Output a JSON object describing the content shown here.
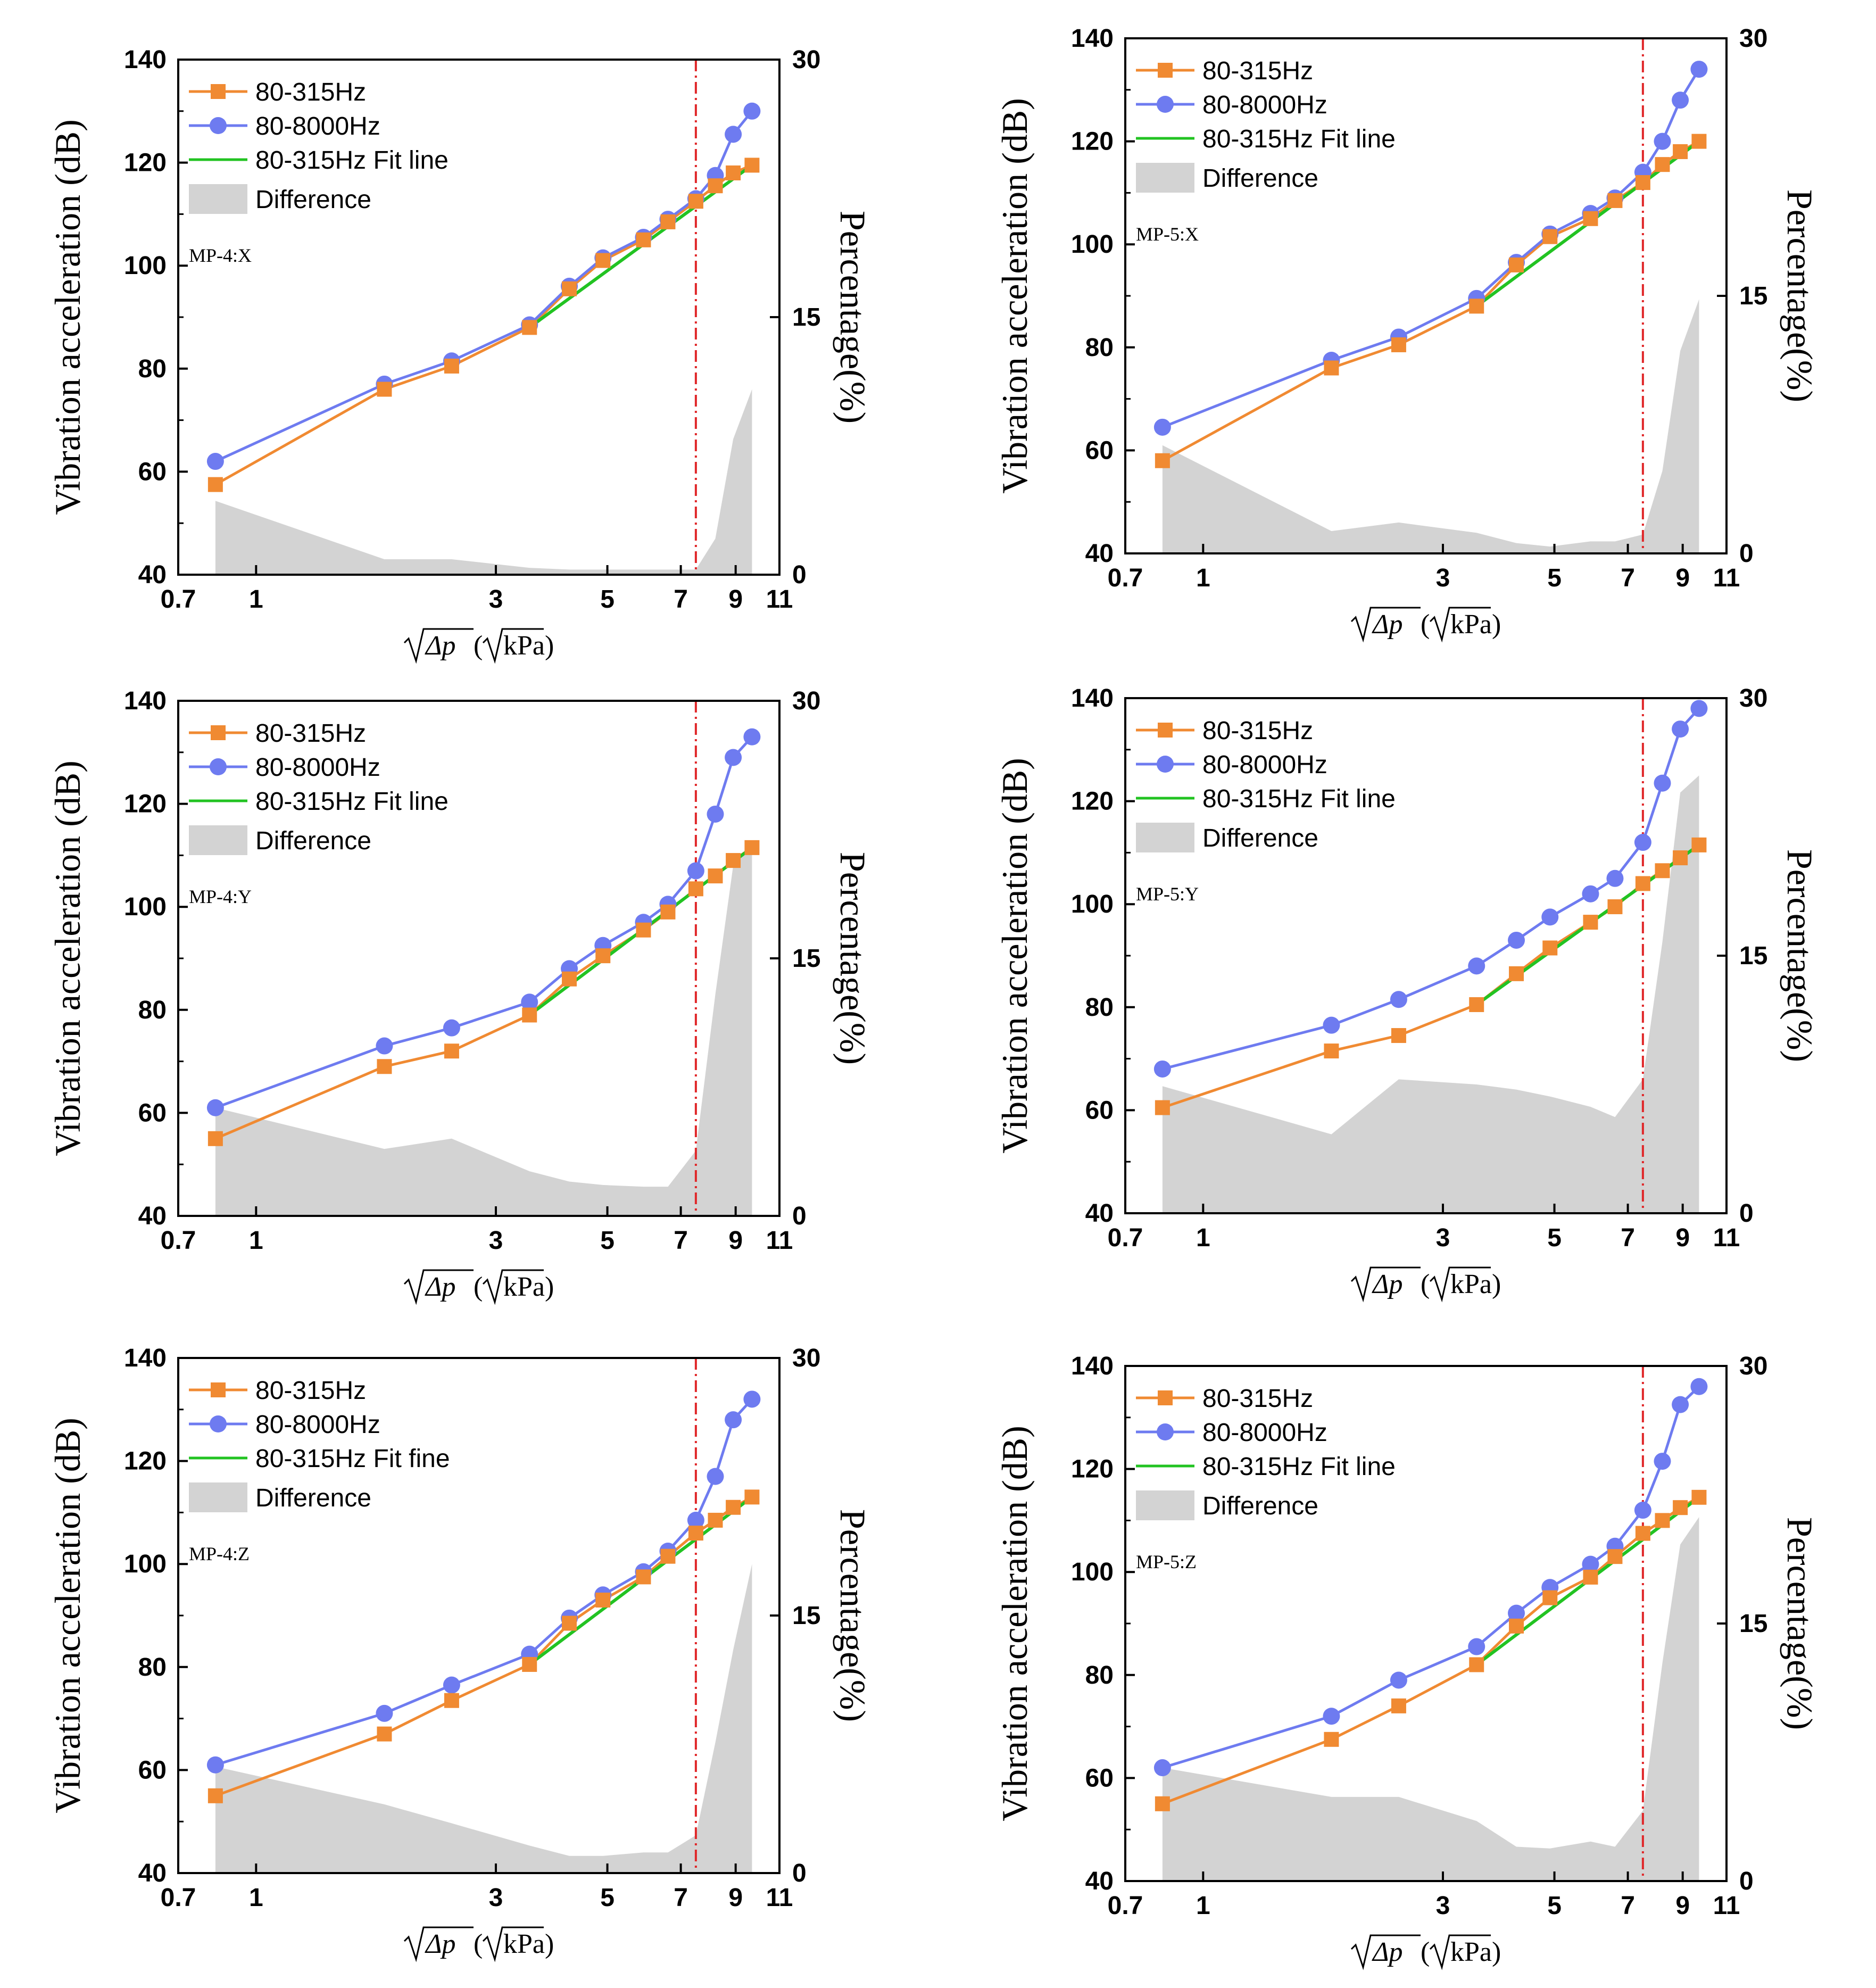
{
  "x_axis": {
    "label_sym": "Δp",
    "label_unit": "kPa",
    "ticks": [
      0.7,
      1,
      3,
      5,
      7,
      9,
      11
    ],
    "tick_labels": [
      "0.7",
      "1",
      "3",
      "5",
      "7",
      "9",
      "11"
    ]
  },
  "y_axis": {
    "title": "Vibration acceleration (dB)",
    "ticks": [
      40,
      60,
      80,
      100,
      120,
      140
    ],
    "tick_labels": [
      "40",
      "60",
      "80",
      "100",
      "120",
      "140"
    ],
    "range": [
      40,
      140
    ]
  },
  "y2_axis": {
    "title": "Percentage(%)",
    "ticks": [
      0,
      15,
      30
    ],
    "tick_labels": [
      "0",
      "15",
      "30"
    ],
    "range": [
      0,
      30
    ]
  },
  "colors": {
    "low": "#F08A32",
    "high": "#6E7BF0",
    "fit": "#22C322",
    "diff": "#D3D3D3",
    "ref": "#E0282A"
  },
  "chart_data": [
    {
      "type": "line",
      "tag": "MP-4:X",
      "legend": [
        "80-315Hz",
        "80-8000Hz",
        "80-315Hz Fit line",
        "Difference"
      ],
      "x": [
        0.83,
        1.8,
        2.45,
        3.5,
        4.2,
        4.9,
        5.9,
        6.6,
        7.5,
        8.2,
        8.9,
        9.7
      ],
      "series": [
        {
          "name": "80-315Hz",
          "values": [
            57.5,
            76,
            80.5,
            88,
            95.5,
            101,
            105,
            108.5,
            112.5,
            115.5,
            118,
            119.5
          ]
        },
        {
          "name": "80-8000Hz",
          "values": [
            62,
            77,
            81.5,
            88.5,
            96,
            101.5,
            105.5,
            109,
            113,
            117.5,
            125.5,
            130
          ]
        },
        {
          "name": "80-315Hz Fit line",
          "x": [
            3.5,
            9.7
          ],
          "values": [
            88,
            119.5
          ]
        }
      ],
      "difference": {
        "x": [
          0.83,
          1.8,
          2.45,
          3.5,
          4.2,
          4.9,
          5.9,
          6.6,
          7.5,
          8.2,
          8.9,
          9.7
        ],
        "values": [
          4.3,
          0.9,
          0.9,
          0.4,
          0.3,
          0.3,
          0.3,
          0.3,
          0.3,
          2.1,
          7.9,
          10.8
        ]
      },
      "ref_x": 7.5,
      "ylim": [
        40,
        140
      ],
      "y2lim": [
        0,
        30
      ]
    },
    {
      "type": "line",
      "tag": "MP-5:X",
      "legend": [
        "80-315Hz",
        "80-8000Hz",
        "80-315Hz Fit line",
        "Difference"
      ],
      "x": [
        0.83,
        1.8,
        2.45,
        3.5,
        4.2,
        4.9,
        5.9,
        6.6,
        7.5,
        8.2,
        8.9,
        9.7
      ],
      "series": [
        {
          "name": "80-315Hz",
          "values": [
            58,
            76,
            80.5,
            88,
            96,
            101.5,
            105,
            108.5,
            112,
            115.5,
            118,
            120
          ]
        },
        {
          "name": "80-8000Hz",
          "values": [
            64.5,
            77.5,
            82,
            89.5,
            96.5,
            102,
            106,
            109,
            114,
            120,
            128,
            134
          ]
        },
        {
          "name": "80-315Hz Fit line",
          "x": [
            3.5,
            9.7
          ],
          "values": [
            88,
            120
          ]
        }
      ],
      "difference": {
        "x": [
          0.83,
          1.8,
          2.45,
          3.5,
          4.2,
          4.9,
          5.9,
          6.6,
          7.5,
          8.2,
          8.9,
          9.7
        ],
        "values": [
          6.3,
          1.3,
          1.8,
          1.2,
          0.6,
          0.4,
          0.7,
          0.7,
          1.1,
          4.8,
          11.8,
          14.8
        ]
      },
      "ref_x": 7.5,
      "ylim": [
        40,
        140
      ],
      "y2lim": [
        0,
        30
      ]
    },
    {
      "type": "line",
      "tag": "MP-4:Y",
      "legend": [
        "80-315Hz",
        "80-8000Hz",
        "80-315Hz Fit line",
        "Difference"
      ],
      "x": [
        0.83,
        1.8,
        2.45,
        3.5,
        4.2,
        4.9,
        5.9,
        6.6,
        7.5,
        8.2,
        8.9,
        9.7
      ],
      "series": [
        {
          "name": "80-315Hz",
          "values": [
            55,
            69,
            72,
            79,
            86,
            90.5,
            95.5,
            99,
            103.5,
            106,
            109,
            111.5
          ]
        },
        {
          "name": "80-8000Hz",
          "values": [
            61,
            73,
            76.5,
            81.5,
            88,
            92.5,
            97,
            100.5,
            107,
            118,
            129,
            133
          ]
        },
        {
          "name": "80-315Hz Fit line",
          "x": [
            3.5,
            9.7
          ],
          "values": [
            79,
            111.5
          ]
        }
      ],
      "difference": {
        "x": [
          0.83,
          1.8,
          2.45,
          3.5,
          4.2,
          4.9,
          5.9,
          6.6,
          7.5,
          8.2,
          8.9,
          9.7
        ],
        "values": [
          6.3,
          3.9,
          4.5,
          2.6,
          2.0,
          1.8,
          1.7,
          1.7,
          3.8,
          12.9,
          20.4,
          21.5
        ]
      },
      "ref_x": 7.5,
      "ylim": [
        40,
        140
      ],
      "y2lim": [
        0,
        30
      ]
    },
    {
      "type": "line",
      "tag": "MP-5:Y",
      "legend": [
        "80-315Hz",
        "80-8000Hz",
        "80-315Hz Fit line",
        "Difference"
      ],
      "x": [
        0.83,
        1.8,
        2.45,
        3.5,
        4.2,
        4.9,
        5.9,
        6.6,
        7.5,
        8.2,
        8.9,
        9.7
      ],
      "series": [
        {
          "name": "80-315Hz",
          "values": [
            60.5,
            71.5,
            74.5,
            80.5,
            86.5,
            91.5,
            96.5,
            99.5,
            104,
            106.5,
            109,
            111.5
          ]
        },
        {
          "name": "80-8000Hz",
          "values": [
            68,
            76.5,
            81.5,
            88,
            93,
            97.5,
            102,
            105,
            112,
            123.5,
            134,
            138
          ]
        },
        {
          "name": "80-315Hz Fit line",
          "x": [
            3.5,
            9.7
          ],
          "values": [
            80.5,
            111.5
          ]
        }
      ],
      "difference": {
        "x": [
          0.83,
          1.8,
          2.45,
          3.5,
          4.2,
          4.9,
          5.9,
          6.6,
          7.5,
          8.2,
          8.9,
          9.7
        ],
        "values": [
          7.4,
          4.6,
          7.8,
          7.5,
          7.2,
          6.8,
          6.2,
          5.6,
          7.8,
          15.8,
          24.5,
          25.5
        ]
      },
      "ref_x": 7.5,
      "ylim": [
        40,
        140
      ],
      "y2lim": [
        0,
        30
      ]
    },
    {
      "type": "line",
      "tag": "MP-4:Z",
      "legend": [
        "80-315Hz",
        "80-8000Hz",
        "80-315Hz Fit fine",
        "Difference"
      ],
      "x": [
        0.83,
        1.8,
        2.45,
        3.5,
        4.2,
        4.9,
        5.9,
        6.6,
        7.5,
        8.2,
        8.9,
        9.7
      ],
      "series": [
        {
          "name": "80-315Hz",
          "values": [
            55,
            67,
            73.5,
            80.5,
            88.5,
            93,
            97.5,
            101.5,
            106,
            108.5,
            111,
            113
          ]
        },
        {
          "name": "80-8000Hz",
          "values": [
            61,
            71,
            76.5,
            82.5,
            89.5,
            94,
            98.5,
            102.5,
            108.5,
            117,
            128,
            132
          ]
        },
        {
          "name": "80-315Hz Fit fine",
          "x": [
            3.5,
            9.7
          ],
          "values": [
            80.5,
            113
          ]
        }
      ],
      "difference": {
        "x": [
          0.83,
          1.8,
          2.45,
          3.5,
          4.2,
          4.9,
          5.9,
          6.6,
          7.5,
          8.2,
          8.9,
          9.7
        ],
        "values": [
          6.2,
          4.0,
          2.9,
          1.6,
          1.0,
          1.0,
          1.2,
          1.2,
          2.2,
          7.6,
          13.0,
          18.0
        ]
      },
      "ref_x": 7.5,
      "ylim": [
        40,
        140
      ],
      "y2lim": [
        0,
        30
      ]
    },
    {
      "type": "line",
      "tag": "MP-5:Z",
      "legend": [
        "80-315Hz",
        "80-8000Hz",
        "80-315Hz Fit line",
        "Difference"
      ],
      "x": [
        0.83,
        1.8,
        2.45,
        3.5,
        4.2,
        4.9,
        5.9,
        6.6,
        7.5,
        8.2,
        8.9,
        9.7
      ],
      "series": [
        {
          "name": "80-315Hz",
          "values": [
            55,
            67.5,
            74,
            82,
            89.5,
            95,
            99,
            103,
            107.5,
            110,
            112.5,
            114.5
          ]
        },
        {
          "name": "80-8000Hz",
          "values": [
            62,
            72,
            79,
            85.5,
            92,
            97,
            101.5,
            105,
            112,
            121.5,
            132.5,
            136
          ]
        },
        {
          "name": "80-315Hz Fit line",
          "x": [
            3.5,
            9.7
          ],
          "values": [
            82,
            114.5
          ]
        }
      ],
      "difference": {
        "x": [
          0.83,
          1.8,
          2.45,
          3.5,
          4.2,
          4.9,
          5.9,
          6.6,
          7.5,
          8.2,
          8.9,
          9.7
        ],
        "values": [
          6.6,
          4.9,
          4.9,
          3.5,
          2.0,
          1.9,
          2.3,
          2.0,
          4.1,
          12.7,
          19.6,
          21.2
        ]
      },
      "ref_x": 7.5,
      "ylim": [
        40,
        140
      ],
      "y2lim": [
        0,
        30
      ]
    }
  ]
}
